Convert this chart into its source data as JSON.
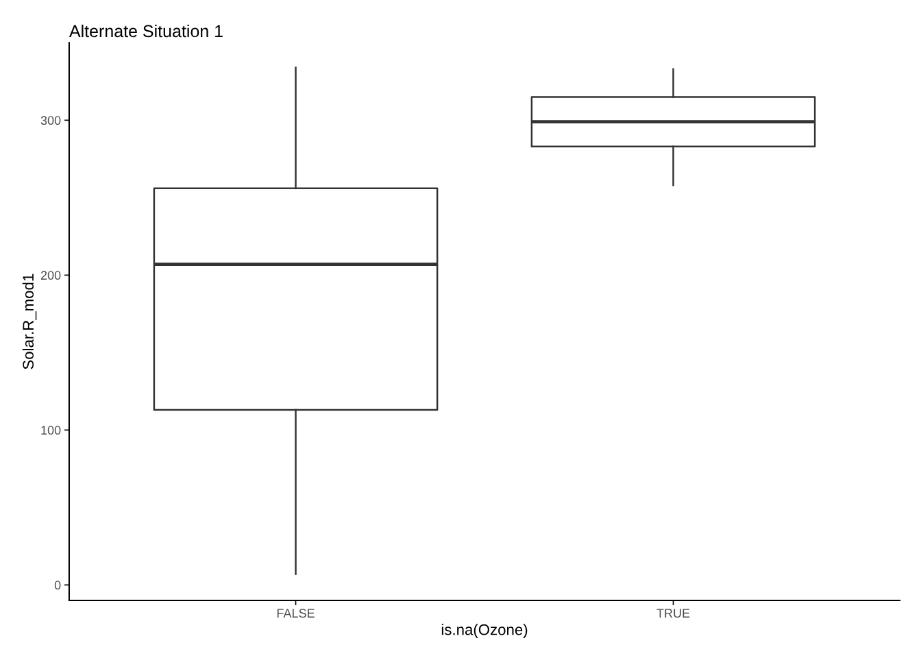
{
  "chart_data": {
    "type": "box",
    "title": "Alternate Situation 1",
    "xlabel": "is.na(Ozone)",
    "ylabel": "Solar.R_mod1",
    "categories": [
      "FALSE",
      "TRUE"
    ],
    "boxes": [
      {
        "low": 7,
        "q1": 113,
        "median": 207,
        "q3": 256,
        "high": 334
      },
      {
        "low": 258,
        "q1": 283,
        "median": 299,
        "q3": 315,
        "high": 333
      }
    ],
    "ylim": [
      -10,
      350
    ],
    "yticks": [
      0,
      100,
      200,
      300
    ],
    "grid": false
  }
}
